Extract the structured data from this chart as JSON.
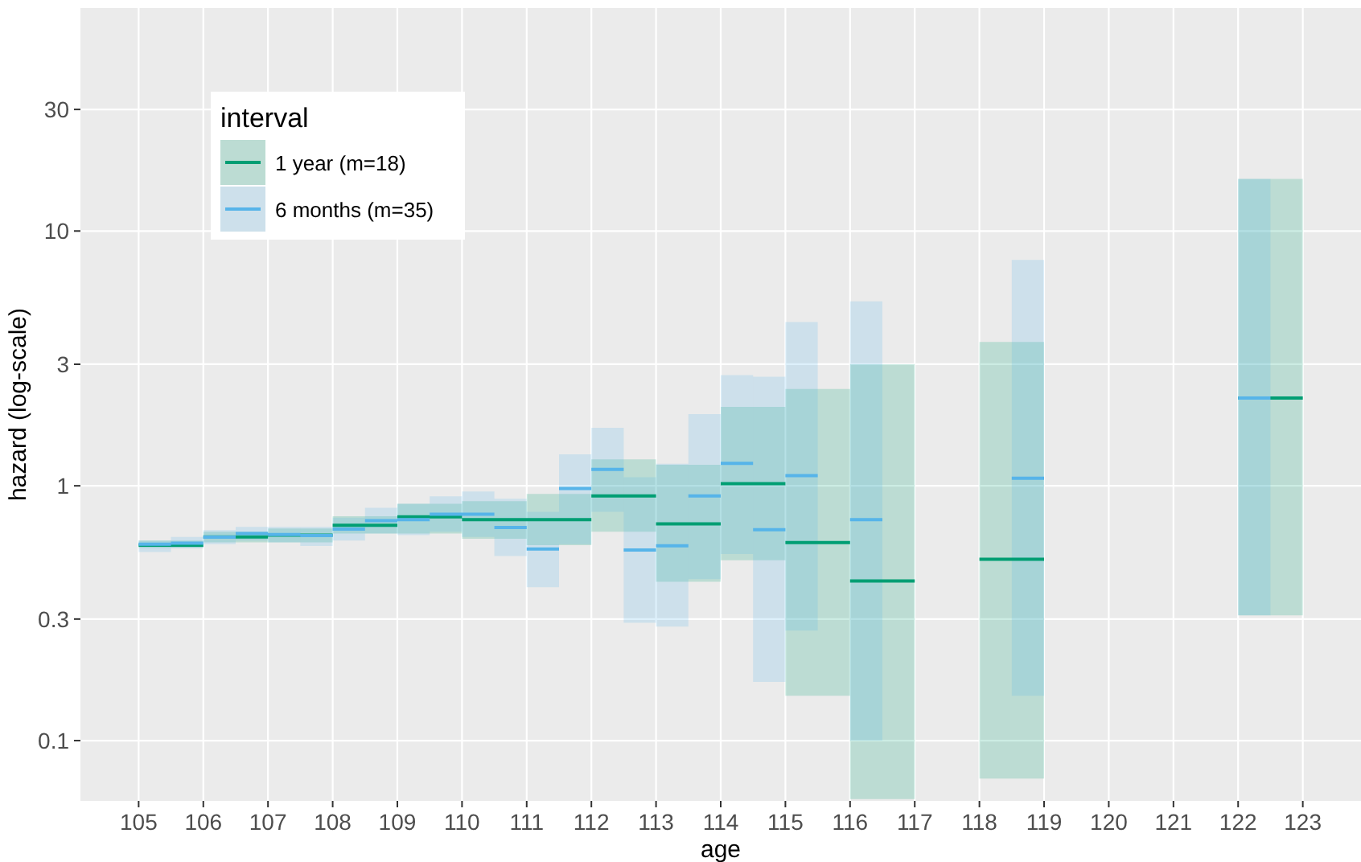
{
  "chart_data": {
    "type": "step",
    "xlabel": "age",
    "ylabel": "hazard (log-scale)",
    "legend_title": "interval",
    "legend": "top left",
    "grid": true,
    "log": "y",
    "xlim": [
      104.1,
      123.9
    ],
    "xticks": [
      105,
      106,
      107,
      108,
      109,
      110,
      111,
      112,
      113,
      114,
      115,
      116,
      117,
      118,
      119,
      120,
      121,
      122,
      123
    ],
    "ylim": [
      0.058,
      75
    ],
    "yticks": [
      0.1,
      0.3,
      1,
      3,
      10,
      30
    ],
    "series": [
      {
        "name": "1 year (m=18)",
        "color": "#009e73",
        "x": [
          105,
          106,
          107,
          108,
          109,
          110,
          111,
          112,
          113,
          114,
          115,
          116,
          117,
          118,
          119,
          122,
          123
        ],
        "values": [
          0.585,
          0.63,
          0.64,
          0.7,
          0.755,
          0.737,
          0.737,
          0.913,
          0.709,
          1.02,
          0.599,
          0.423,
          null,
          0.515,
          null,
          2.21,
          2.21
        ],
        "lower": [
          0.57,
          0.6,
          0.6,
          0.65,
          0.65,
          0.62,
          0.585,
          0.66,
          0.42,
          0.51,
          0.15,
          0.059,
          null,
          0.071,
          null,
          0.31,
          0.31
        ],
        "upper": [
          0.61,
          0.66,
          0.68,
          0.76,
          0.85,
          0.87,
          0.93,
          1.27,
          1.21,
          2.04,
          2.4,
          3.0,
          null,
          3.67,
          null,
          16,
          16
        ]
      },
      {
        "name": "6 months (m=35)",
        "color": "#56b4e9",
        "x": [
          105,
          105.5,
          106,
          106.5,
          107,
          107.5,
          108,
          108.5,
          109,
          109.5,
          110,
          110.5,
          111,
          111.5,
          112,
          112.5,
          113,
          113.5,
          114,
          114.5,
          115,
          115.5,
          116,
          116.5,
          118.5,
          119,
          122,
          122.5
        ],
        "values": [
          0.59,
          0.596,
          0.629,
          0.65,
          0.644,
          0.638,
          0.676,
          0.73,
          0.737,
          0.774,
          0.774,
          0.686,
          0.565,
          0.976,
          1.16,
          0.56,
          0.582,
          0.913,
          1.225,
          0.673,
          1.096,
          null,
          0.737,
          null,
          1.07,
          null,
          2.21,
          2.21
        ],
        "lower": [
          0.55,
          0.57,
          0.59,
          0.61,
          0.6,
          0.58,
          0.61,
          0.65,
          0.64,
          0.66,
          0.63,
          0.53,
          0.4,
          0.59,
          0.79,
          0.29,
          0.28,
          0.43,
          0.54,
          0.17,
          0.27,
          null,
          0.1,
          null,
          0.15,
          null,
          0.31,
          0.31
        ],
        "upper": [
          0.61,
          0.63,
          0.67,
          0.69,
          0.69,
          0.69,
          0.75,
          0.82,
          0.85,
          0.91,
          0.95,
          0.89,
          0.79,
          1.33,
          1.69,
          1.08,
          1.22,
          1.91,
          2.72,
          2.68,
          4.39,
          null,
          5.3,
          null,
          7.7,
          null,
          16,
          16
        ]
      }
    ]
  }
}
